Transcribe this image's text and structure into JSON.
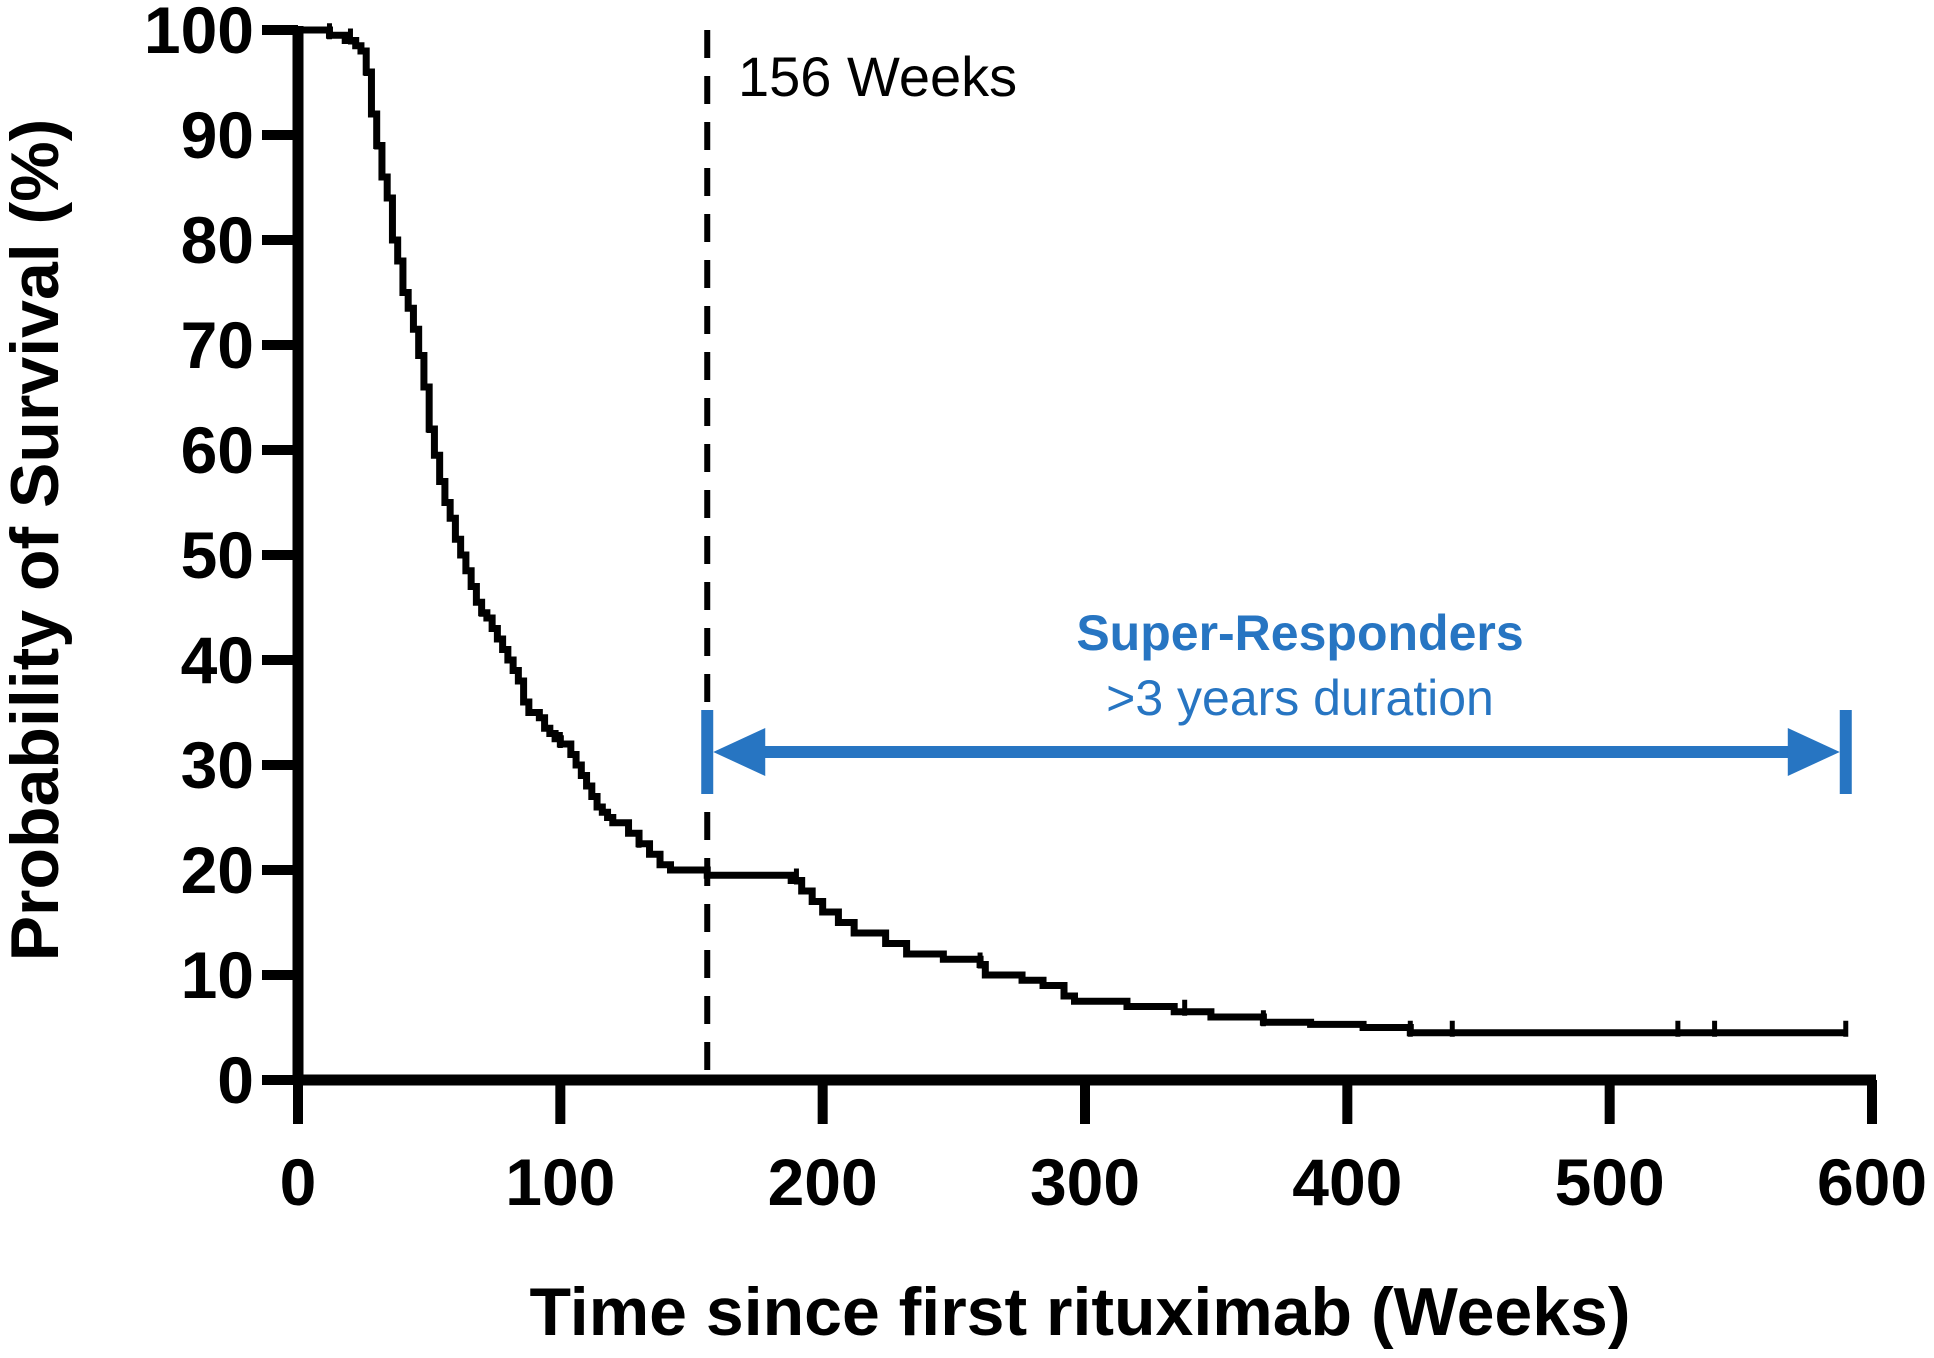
{
  "chart_data": {
    "type": "line",
    "subtype": "kaplan-meier step",
    "title": "",
    "xlabel": "Time since first rituximab (Weeks)",
    "ylabel": "Probability of Survival (%)",
    "xlim": [
      0,
      600
    ],
    "ylim": [
      0,
      100
    ],
    "xticks": [
      0,
      100,
      200,
      300,
      400,
      500,
      600
    ],
    "yticks": [
      0,
      10,
      20,
      30,
      40,
      50,
      60,
      70,
      80,
      90,
      100
    ],
    "grid": false,
    "legend": "none",
    "series": [
      {
        "color": "#000000",
        "x": [
          0,
          12,
          18,
          22,
          24,
          26,
          28,
          30,
          32,
          34,
          36,
          38,
          40,
          42,
          44,
          46,
          48,
          50,
          52,
          54,
          56,
          58,
          60,
          62,
          64,
          66,
          68,
          70,
          72,
          74,
          76,
          78,
          80,
          82,
          84,
          86,
          88,
          92,
          94,
          96,
          98,
          100,
          104,
          106,
          108,
          110,
          112,
          114,
          116,
          118,
          120,
          126,
          130,
          134,
          138,
          142,
          156,
          172,
          188,
          192,
          196,
          200,
          206,
          212,
          224,
          232,
          246,
          260,
          262,
          276,
          284,
          292,
          296,
          316,
          334,
          348,
          368,
          386,
          406,
          424,
          440,
          500,
          526,
          540,
          560,
          590
        ],
        "y": [
          100,
          99.5,
          99,
          98.5,
          98,
          96,
          92,
          89,
          86,
          84,
          80,
          78,
          75,
          73.5,
          71.5,
          69,
          66,
          62,
          59.5,
          57,
          55,
          53.5,
          51.5,
          50,
          48.5,
          47,
          45.5,
          44.5,
          44,
          43,
          42,
          41,
          40,
          39,
          38,
          36,
          35,
          34.5,
          33.5,
          33,
          32.5,
          32,
          31,
          30,
          29,
          28,
          27,
          26,
          25.5,
          25,
          24.5,
          23.5,
          22.5,
          21.5,
          20.5,
          20,
          19.5,
          19.5,
          19,
          18,
          17,
          16,
          15,
          14,
          13,
          12,
          11.5,
          11,
          10,
          9.5,
          9,
          8,
          7.5,
          7,
          6.5,
          6,
          5.5,
          5.3,
          5,
          4.5,
          4.5,
          4.5,
          4.5,
          4.5,
          4.5,
          4.5
        ],
        "censored_x": [
          12,
          20,
          26,
          30,
          50,
          70,
          100,
          130,
          190,
          260,
          338,
          368,
          424,
          440,
          526,
          540,
          590
        ]
      }
    ],
    "reference_line": {
      "x": 156,
      "label": "156 Weeks",
      "style": "dashed"
    },
    "annotation": {
      "title": "Super-Responders",
      "subtitle": ">3 years duration",
      "x_start": 156,
      "x_end": 590,
      "y": 30,
      "color": "#2775c2"
    }
  }
}
